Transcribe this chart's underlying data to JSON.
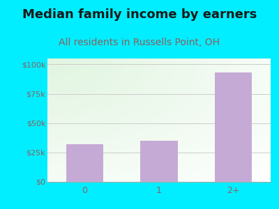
{
  "title": "Median family income by earners",
  "subtitle": "All residents in Russells Point, OH",
  "categories": [
    "0",
    "1",
    "2+"
  ],
  "values": [
    32000,
    35000,
    93000
  ],
  "bar_color": "#c5aad5",
  "title_color": "#1a1a1a",
  "subtitle_color": "#8b6060",
  "outer_bg": "#00eeff",
  "yticks": [
    0,
    25000,
    50000,
    75000,
    100000
  ],
  "ytick_labels": [
    "$0",
    "$25k",
    "$50k",
    "$75k",
    "$100k"
  ],
  "ylim": [
    0,
    105000
  ],
  "tick_color": "#8b6060",
  "grid_color": "#cccccc",
  "title_fontsize": 13,
  "subtitle_fontsize": 10
}
